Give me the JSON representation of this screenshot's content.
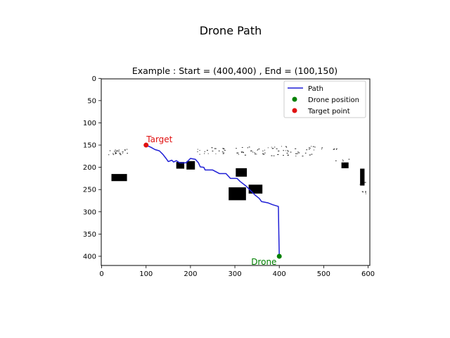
{
  "figure": {
    "suptitle": "Drone Path"
  },
  "chart_data": {
    "type": "line",
    "title": "Example : Start = (400,400) , End = (100,150)",
    "xlabel": "",
    "ylabel": "",
    "xlim": [
      0,
      605
    ],
    "ylim": [
      420,
      0
    ],
    "y_inverted": true,
    "x_ticks": [
      0,
      100,
      200,
      300,
      400,
      500,
      600
    ],
    "y_ticks": [
      0,
      50,
      100,
      150,
      200,
      250,
      300,
      350,
      400
    ],
    "grid": false,
    "legend_position": "top-right",
    "legend": [
      {
        "label": "Path",
        "marker": "line",
        "color": "#1f1fd6"
      },
      {
        "label": "Drone position",
        "marker": "dot",
        "color": "#008000"
      },
      {
        "label": "Target point",
        "marker": "dot",
        "color": "#e01010"
      }
    ],
    "series": [
      {
        "name": "Path",
        "color": "#1f1fd6",
        "points": [
          [
            400,
            400
          ],
          [
            399,
            350
          ],
          [
            398,
            288
          ],
          [
            385,
            284
          ],
          [
            375,
            280
          ],
          [
            360,
            277
          ],
          [
            355,
            270
          ],
          [
            345,
            262
          ],
          [
            335,
            252
          ],
          [
            325,
            242
          ],
          [
            312,
            232
          ],
          [
            305,
            225
          ],
          [
            290,
            225
          ],
          [
            280,
            214
          ],
          [
            265,
            214
          ],
          [
            250,
            206
          ],
          [
            233,
            206
          ],
          [
            230,
            200
          ],
          [
            222,
            199
          ],
          [
            218,
            190
          ],
          [
            211,
            182
          ],
          [
            200,
            180
          ],
          [
            190,
            190
          ],
          [
            176,
            190
          ],
          [
            168,
            185
          ],
          [
            162,
            188
          ],
          [
            158,
            184
          ],
          [
            150,
            187
          ],
          [
            145,
            180
          ],
          [
            138,
            171
          ],
          [
            130,
            163
          ],
          [
            120,
            160
          ],
          [
            111,
            155
          ],
          [
            100,
            150
          ]
        ]
      }
    ],
    "drone_position": {
      "x": 400,
      "y": 400,
      "label": "Drone",
      "color": "#008000"
    },
    "target_point": {
      "x": 100,
      "y": 150,
      "label": "Target",
      "color": "#e01010"
    },
    "obstacles": [
      {
        "x0": 22,
        "y0": 215,
        "x1": 57,
        "y1": 231
      },
      {
        "x0": 168,
        "y0": 188,
        "x1": 186,
        "y1": 203
      },
      {
        "x0": 191,
        "y0": 186,
        "x1": 210,
        "y1": 205
      },
      {
        "x0": 302,
        "y0": 202,
        "x1": 327,
        "y1": 221
      },
      {
        "x0": 286,
        "y0": 245,
        "x1": 325,
        "y1": 274
      },
      {
        "x0": 331,
        "y0": 239,
        "x1": 362,
        "y1": 259
      },
      {
        "x0": 540,
        "y0": 189,
        "x1": 556,
        "y1": 202
      },
      {
        "x0": 582,
        "y0": 203,
        "x1": 592,
        "y1": 241
      }
    ]
  }
}
